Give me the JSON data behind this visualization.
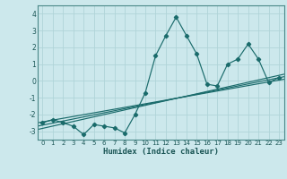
{
  "xlabel": "Humidex (Indice chaleur)",
  "bg_color": "#cce8ec",
  "line_color": "#1a6b6b",
  "grid_color": "#b0d4d8",
  "xlim": [
    -0.5,
    23.5
  ],
  "ylim": [
    -3.5,
    4.5
  ],
  "xticks": [
    0,
    1,
    2,
    3,
    4,
    5,
    6,
    7,
    8,
    9,
    10,
    11,
    12,
    13,
    14,
    15,
    16,
    17,
    18,
    19,
    20,
    21,
    22,
    23
  ],
  "yticks": [
    -3,
    -2,
    -1,
    0,
    1,
    2,
    3,
    4
  ],
  "scatter_x": [
    0,
    1,
    2,
    3,
    4,
    5,
    6,
    7,
    8,
    9,
    10,
    11,
    12,
    13,
    14,
    15,
    16,
    17,
    18,
    19,
    20,
    21,
    22,
    23
  ],
  "scatter_y": [
    -2.5,
    -2.3,
    -2.5,
    -2.7,
    -3.2,
    -2.6,
    -2.7,
    -2.8,
    -3.1,
    -2.0,
    -0.7,
    1.5,
    2.7,
    3.8,
    2.7,
    1.6,
    -0.2,
    -0.3,
    1.0,
    1.3,
    2.2,
    1.3,
    -0.1,
    0.2
  ],
  "reg_line1_x": [
    -0.5,
    23.5
  ],
  "reg_line1_y": [
    -2.9,
    0.4
  ],
  "reg_line2_x": [
    -0.5,
    23.5
  ],
  "reg_line2_y": [
    -2.5,
    0.1
  ],
  "reg_line3_x": [
    -0.5,
    23.5
  ],
  "reg_line3_y": [
    -2.7,
    0.25
  ]
}
